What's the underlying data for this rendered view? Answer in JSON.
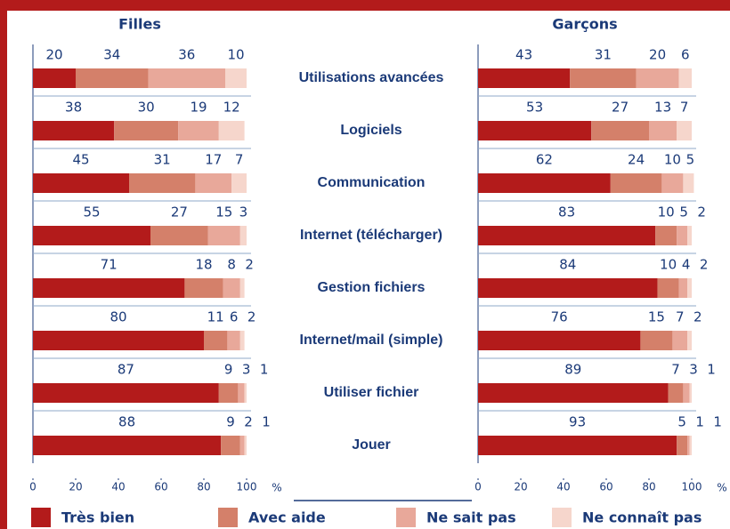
{
  "chart_data": {
    "type": "stacked_barh",
    "categories": [
      "Utilisations avancées",
      "Logiciels",
      "Communication",
      "Internet (télécharger)",
      "Gestion fichiers",
      "Internet/mail (simple)",
      "Utiliser fichier",
      "Jouer"
    ],
    "series": [
      {
        "name": "Très bien",
        "color": "#b31b1b"
      },
      {
        "name": "Avec aide",
        "color": "#d4806a"
      },
      {
        "name": "Ne sait pas",
        "color": "#e8a89a"
      },
      {
        "name": "Ne connaît pas",
        "color": "#f6d6cc"
      }
    ],
    "panels": [
      {
        "title": "Filles",
        "series": [
          {
            "values": [
              20,
              38,
              45,
              55,
              71,
              80,
              87,
              88
            ]
          },
          {
            "values": [
              34,
              30,
              31,
              27,
              18,
              11,
              9,
              9
            ]
          },
          {
            "values": [
              36,
              19,
              17,
              15,
              8,
              6,
              3,
              2
            ]
          },
          {
            "values": [
              10,
              12,
              7,
              3,
              2,
              2,
              1,
              1
            ]
          }
        ]
      },
      {
        "title": "Garçons",
        "series": [
          {
            "values": [
              43,
              53,
              62,
              83,
              84,
              76,
              89,
              93
            ]
          },
          {
            "values": [
              31,
              27,
              24,
              10,
              10,
              15,
              7,
              5
            ]
          },
          {
            "values": [
              20,
              13,
              10,
              5,
              4,
              7,
              3,
              1
            ]
          },
          {
            "values": [
              6,
              7,
              5,
              2,
              2,
              2,
              1,
              1
            ]
          }
        ]
      }
    ],
    "xlim": [
      0,
      100
    ],
    "xticks": [
      0,
      20,
      40,
      60,
      80,
      100
    ],
    "x_unit": "%"
  }
}
